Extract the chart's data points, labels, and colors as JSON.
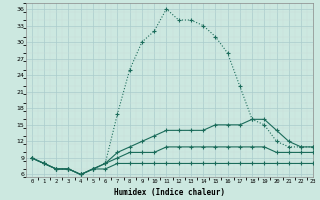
{
  "xlabel": "Humidex (Indice chaleur)",
  "background_color": "#cce8e0",
  "line_color": "#1a6b5a",
  "grid_color": "#aacccc",
  "grid_color2": "#c8ddd8",
  "x": [
    0,
    1,
    2,
    3,
    4,
    5,
    6,
    7,
    8,
    9,
    10,
    11,
    12,
    13,
    14,
    15,
    16,
    17,
    18,
    19,
    20,
    21,
    22,
    23
  ],
  "line1": [
    9,
    8,
    7,
    7,
    6,
    7,
    8,
    17,
    25,
    30,
    32,
    36,
    34,
    34,
    33,
    31,
    28,
    22,
    16,
    15,
    12,
    11,
    11,
    11
  ],
  "line2": [
    9,
    8,
    7,
    7,
    6,
    7,
    8,
    10,
    11,
    12,
    13,
    14,
    14,
    14,
    14,
    15,
    15,
    15,
    16,
    16,
    14,
    12,
    11,
    11
  ],
  "line3": [
    9,
    8,
    7,
    7,
    6,
    7,
    8,
    9,
    10,
    10,
    10,
    11,
    11,
    11,
    11,
    11,
    11,
    11,
    11,
    11,
    10,
    10,
    10,
    10
  ],
  "line4": [
    9,
    8,
    7,
    7,
    6,
    7,
    7,
    8,
    8,
    8,
    8,
    8,
    8,
    8,
    8,
    8,
    8,
    8,
    8,
    8,
    8,
    8,
    8,
    8
  ],
  "line1_dotted": true,
  "ylim": [
    5.5,
    37
  ],
  "xlim": [
    -0.5,
    23
  ],
  "yticks": [
    6,
    9,
    12,
    15,
    18,
    21,
    24,
    27,
    30,
    33,
    36
  ],
  "xticks": [
    0,
    1,
    2,
    3,
    4,
    5,
    6,
    7,
    8,
    9,
    10,
    11,
    12,
    13,
    14,
    15,
    16,
    17,
    18,
    19,
    20,
    21,
    22,
    23
  ],
  "xtick_labels": [
    "0",
    "1",
    "2",
    "3",
    "4",
    "5",
    "6",
    "7",
    "8",
    "9",
    "10",
    "11",
    "12",
    "13",
    "14",
    "15",
    "16",
    "17",
    "18",
    "19",
    "20",
    "21",
    "22",
    "23"
  ]
}
